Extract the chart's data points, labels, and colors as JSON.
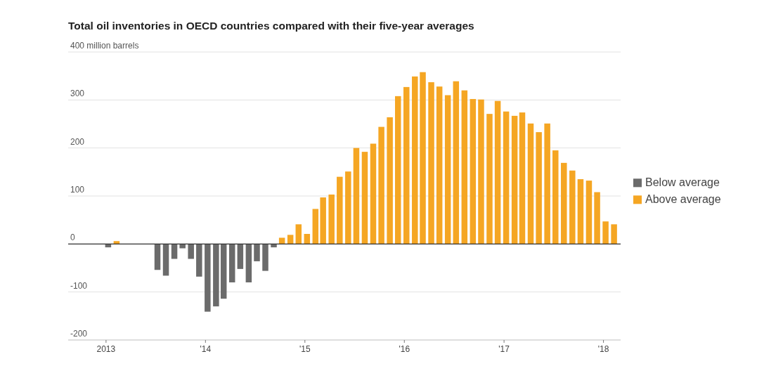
{
  "chart_data": {
    "type": "bar",
    "title": "Total oil inventories in OECD countries compared with their five-year averages",
    "x": [
      "2013-01",
      "2013-02",
      "2013-07",
      "2013-08",
      "2013-09",
      "2013-10",
      "2013-11",
      "2013-12",
      "2014-01",
      "2014-02",
      "2014-03",
      "2014-04",
      "2014-05",
      "2014-06",
      "2014-07",
      "2014-08",
      "2014-09",
      "2014-10",
      "2014-11",
      "2014-12",
      "2015-01",
      "2015-02",
      "2015-03",
      "2015-04",
      "2015-05",
      "2015-06",
      "2015-07",
      "2015-08",
      "2015-09",
      "2015-10",
      "2015-11",
      "2015-12",
      "2016-01",
      "2016-02",
      "2016-03",
      "2016-04",
      "2016-05",
      "2016-06",
      "2016-07",
      "2016-08",
      "2016-09",
      "2016-10",
      "2016-11",
      "2016-12",
      "2017-01",
      "2017-02",
      "2017-03",
      "2017-04",
      "2017-05",
      "2017-06",
      "2017-07",
      "2017-08",
      "2017-09",
      "2017-10",
      "2017-11",
      "2017-12",
      "2018-01",
      "2018-02"
    ],
    "series": [
      {
        "name": "Below average",
        "color": "#6b6b6b",
        "values": [
          -7,
          null,
          -54,
          -66,
          -31,
          -9,
          -31,
          -68,
          -141,
          -130,
          -114,
          -80,
          -52,
          -80,
          -36,
          -56,
          -7,
          null,
          null,
          null,
          null,
          null,
          null,
          null,
          null,
          null,
          null,
          null,
          null,
          null,
          null,
          null,
          null,
          null,
          null,
          null,
          null,
          null,
          null,
          null,
          null,
          null,
          null,
          null,
          null,
          null,
          null,
          null,
          null,
          null,
          null,
          null,
          null,
          null,
          null,
          null,
          null,
          null
        ]
      },
      {
        "name": "Above average",
        "color": "#f5a623",
        "values": [
          null,
          6,
          null,
          null,
          null,
          null,
          null,
          null,
          null,
          null,
          null,
          null,
          null,
          null,
          null,
          null,
          null,
          13,
          19,
          41,
          21,
          73,
          97,
          103,
          140,
          151,
          200,
          192,
          209,
          244,
          264,
          308,
          327,
          349,
          358,
          337,
          328,
          310,
          339,
          320,
          302,
          301,
          271,
          298,
          276,
          267,
          274,
          251,
          233,
          251,
          195,
          169,
          153,
          135,
          132,
          108,
          47,
          41
        ]
      }
    ],
    "xlim": [
      "2012-08-15",
      "2018-03-05"
    ],
    "xticks": [
      {
        "value": "2013-01",
        "label": "2013"
      },
      {
        "value": "2014-01",
        "label": "'14"
      },
      {
        "value": "2015-01",
        "label": "'15"
      },
      {
        "value": "2016-01",
        "label": "'16"
      },
      {
        "value": "2017-01",
        "label": "'17"
      },
      {
        "value": "2018-01",
        "label": "'18"
      }
    ],
    "ylim": [
      -200,
      400
    ],
    "yticks": [
      -200,
      -100,
      0,
      100,
      200,
      300,
      {
        "value": 400,
        "label": "400 million barrels"
      }
    ],
    "grid": "y",
    "legend": "right"
  }
}
